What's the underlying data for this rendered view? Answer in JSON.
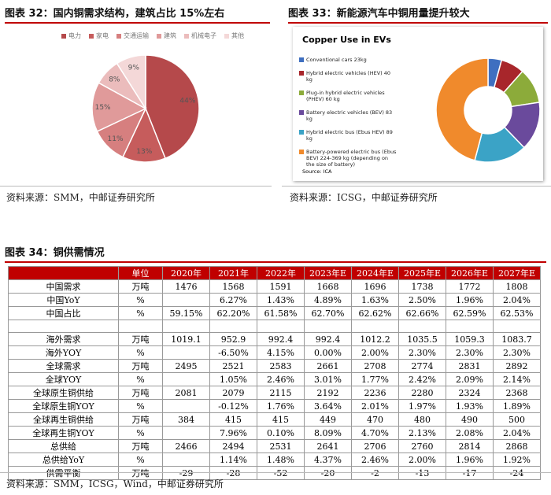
{
  "chart_data": [
    {
      "type": "pie",
      "caption": "图表 32：国内铜需求结构，建筑占比 15%左右",
      "categories": [
        "电力",
        "家电",
        "交通运输",
        "建筑",
        "机械电子",
        "其他"
      ],
      "values": [
        44,
        13,
        11,
        15,
        8,
        9
      ],
      "value_labels": [
        "44%",
        "13%",
        "11%",
        "15%",
        "8%",
        "9%"
      ],
      "colors": [
        "#b5494b",
        "#c65c5c",
        "#d67f7f",
        "#e09a9a",
        "#ebbcbc",
        "#f4d8d8"
      ],
      "source": "资料来源：SMM，中邮证券研究所"
    },
    {
      "type": "donut",
      "caption": "图表 33：新能源汽车中铜用量提升较大",
      "title": "Copper Use in EVs",
      "categories": [
        "Conventional cars 23kg",
        "Hybrid electric vehicles (HEV) 40 kg",
        "Plug-in hybrid electric vehicles (PHEV) 60 kg",
        "Battery electric vehicles (BEV) 83 kg",
        "Hybrid electric bus (Ebus HEV) 89 kg",
        "Battery-powered electric bus (Ebus BEV) 224-369 kg (depending on the size of battery)"
      ],
      "values": [
        23,
        40,
        60,
        83,
        89,
        250
      ],
      "colors": [
        "#3f6fc0",
        "#a8262b",
        "#8cab3a",
        "#6a4a9c",
        "#3ba3c6",
        "#f08a2c"
      ],
      "note": "Source: ICA",
      "source": "资料来源：ICSG，中邮证券研究所"
    }
  ],
  "table": {
    "caption": "图表 34：铜供需情况",
    "header": [
      null,
      "单位",
      "2020年",
      "2021年",
      "2022年",
      "2023年E",
      "2024年E",
      "2025年E",
      "2026年E",
      "2027年E"
    ],
    "rows": [
      [
        "中国需求",
        "万吨",
        "1476",
        "1568",
        "1591",
        "1668",
        "1696",
        "1738",
        "1772",
        "1808"
      ],
      [
        "中国YoY",
        "%",
        null,
        "6.27%",
        "1.43%",
        "4.89%",
        "1.63%",
        "2.50%",
        "1.96%",
        "2.04%"
      ],
      [
        "中国占比",
        "%",
        "59.15%",
        "62.20%",
        "61.58%",
        "62.70%",
        "62.62%",
        "62.66%",
        "62.59%",
        "62.53%"
      ],
      null,
      [
        "海外需求",
        "万吨",
        "1019.1",
        "952.9",
        "992.4",
        "992.4",
        "1012.2",
        "1035.5",
        "1059.3",
        "1083.7"
      ],
      [
        "海外YOY",
        "%",
        null,
        "-6.50%",
        "4.15%",
        "0.00%",
        "2.00%",
        "2.30%",
        "2.30%",
        "2.30%"
      ],
      [
        "全球需求",
        "万吨",
        "2495",
        "2521",
        "2583",
        "2661",
        "2708",
        "2774",
        "2831",
        "2892"
      ],
      [
        "全球YOY",
        "%",
        null,
        "1.05%",
        "2.46%",
        "3.01%",
        "1.77%",
        "2.42%",
        "2.09%",
        "2.14%"
      ],
      [
        "全球原生铜供给",
        "万吨",
        "2081",
        "2079",
        "2115",
        "2192",
        "2236",
        "2280",
        "2324",
        "2368"
      ],
      [
        "全球原生铜YOY",
        "%",
        null,
        "-0.12%",
        "1.76%",
        "3.64%",
        "2.01%",
        "1.97%",
        "1.93%",
        "1.89%"
      ],
      [
        "全球再生铜供给",
        "万吨",
        "384",
        "415",
        "415",
        "449",
        "470",
        "480",
        "490",
        "500"
      ],
      [
        "全球再生铜YOY",
        "%",
        null,
        "7.96%",
        "0.10%",
        "8.09%",
        "4.70%",
        "2.13%",
        "2.08%",
        "2.04%"
      ],
      [
        "总供给",
        "万吨",
        "2466",
        "2494",
        "2531",
        "2641",
        "2706",
        "2760",
        "2814",
        "2868"
      ],
      [
        "总供给YoY",
        "%",
        null,
        "1.14%",
        "1.48%",
        "4.37%",
        "2.46%",
        "2.00%",
        "1.96%",
        "1.92%"
      ],
      [
        "供需平衡",
        "万吨",
        "-29",
        "-28",
        "-52",
        "-20",
        "-2",
        "-13",
        "-17",
        "-24"
      ]
    ],
    "source": "资料来源：SMM，ICSG，Wind，中邮证券研究所"
  }
}
